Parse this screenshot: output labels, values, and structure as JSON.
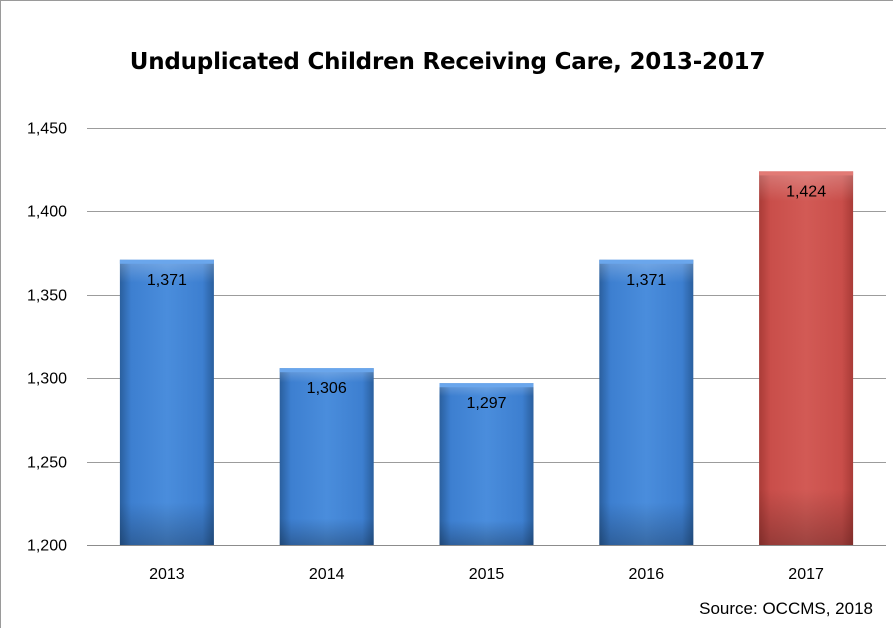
{
  "chart_data": {
    "type": "bar",
    "title": "Unduplicated Children Receiving Care, 2013-2017",
    "categories": [
      "2013",
      "2014",
      "2015",
      "2016",
      "2017"
    ],
    "values": [
      1371,
      1306,
      1297,
      1371,
      1424
    ],
    "value_labels": [
      "1,371",
      "1,306",
      "1,297",
      "1,371",
      "1,424"
    ],
    "bar_colors": [
      "#3a78c9",
      "#3a78c9",
      "#3a78c9",
      "#3a78c9",
      "#c9504c"
    ],
    "ylim": [
      1200,
      1450
    ],
    "y_ticks": [
      1200,
      1250,
      1300,
      1350,
      1400,
      1450
    ],
    "y_tick_labels": [
      "1,200",
      "1,250",
      "1,300",
      "1,350",
      "1,400",
      "1,450"
    ],
    "grid": true,
    "legend": "none",
    "source": "Source: OCCMS, 2018"
  }
}
